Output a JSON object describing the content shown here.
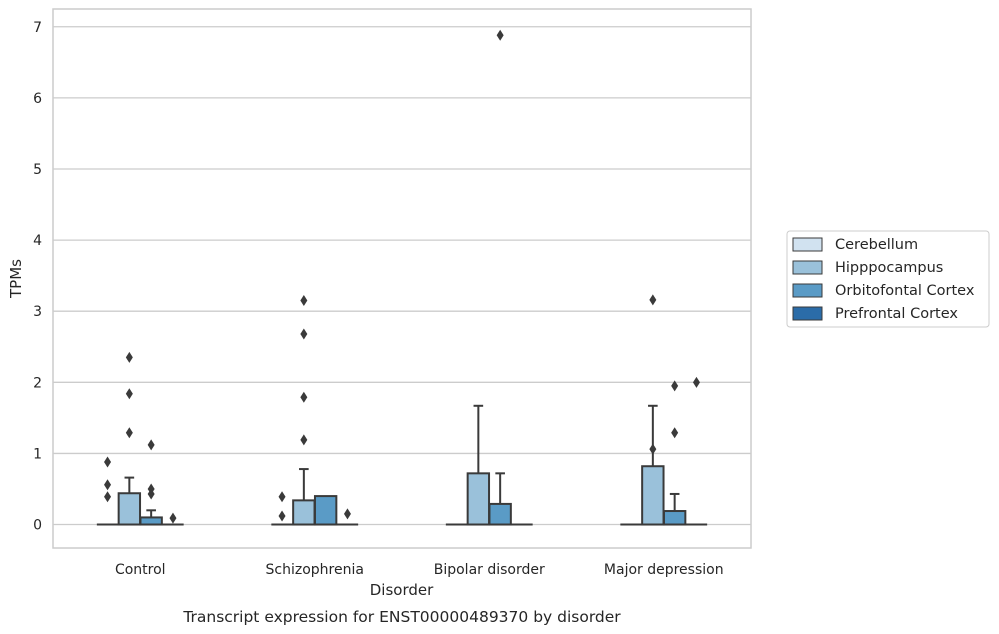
{
  "caption": "Transcript expression for ENST00000489370 by disorder",
  "chart_data": {
    "type": "box",
    "title": "",
    "xlabel": "Disorder",
    "ylabel": "TPMs",
    "ylim": [
      -0.33,
      7.25
    ],
    "yticks": [
      0,
      1,
      2,
      3,
      4,
      5,
      6,
      7
    ],
    "grid": "horizontal",
    "legend_position": "right",
    "categories": [
      "Control",
      "Schizophrenia",
      "Bipolar disorder",
      "Major depression"
    ],
    "series": [
      {
        "name": "Cerebellum",
        "color": "#d1e2f0",
        "boxes": [
          {
            "q1": 0,
            "median": 0,
            "q3": 0,
            "whisker_low": 0,
            "whisker_high": 0,
            "outliers": [
              0.39,
              0.56,
              0.88
            ]
          },
          {
            "q1": 0,
            "median": 0,
            "q3": 0,
            "whisker_low": 0,
            "whisker_high": 0,
            "outliers": [
              0.12,
              0.39
            ]
          },
          {
            "q1": 0,
            "median": 0,
            "q3": 0,
            "whisker_low": 0,
            "whisker_high": 0,
            "outliers": []
          },
          {
            "q1": 0,
            "median": 0,
            "q3": 0,
            "whisker_low": 0,
            "whisker_high": 0,
            "outliers": []
          }
        ]
      },
      {
        "name": "Hipppocampus",
        "color": "#9ac1da",
        "boxes": [
          {
            "q1": 0,
            "median": 0,
            "q3": 0.44,
            "whisker_low": 0,
            "whisker_high": 0.66,
            "outliers": [
              1.29,
              1.84,
              2.35
            ]
          },
          {
            "q1": 0,
            "median": 0,
            "q3": 0.34,
            "whisker_low": 0,
            "whisker_high": 0.78,
            "outliers": [
              1.19,
              1.79,
              2.68,
              3.15
            ]
          },
          {
            "q1": 0,
            "median": 0,
            "q3": 0.72,
            "whisker_low": 0,
            "whisker_high": 1.67,
            "outliers": []
          },
          {
            "q1": 0,
            "median": 0,
            "q3": 0.82,
            "whisker_low": 0,
            "whisker_high": 1.67,
            "outliers": [
              1.06,
              3.16
            ]
          }
        ]
      },
      {
        "name": "Orbitofontal Cortex",
        "color": "#5a9bc6",
        "boxes": [
          {
            "q1": 0,
            "median": 0,
            "q3": 0.1,
            "whisker_low": 0,
            "whisker_high": 0.2,
            "outliers": [
              0.43,
              0.5,
              1.12
            ]
          },
          {
            "q1": 0,
            "median": 0,
            "q3": 0.4,
            "whisker_low": 0,
            "whisker_high": 0.4,
            "outliers": []
          },
          {
            "q1": 0,
            "median": 0,
            "q3": 0.29,
            "whisker_low": 0,
            "whisker_high": 0.72,
            "outliers": [
              6.88
            ]
          },
          {
            "q1": 0,
            "median": 0,
            "q3": 0.19,
            "whisker_low": 0,
            "whisker_high": 0.43,
            "outliers": [
              1.29,
              1.95
            ]
          }
        ]
      },
      {
        "name": "Prefrontal Cortex",
        "color": "#2b6ca8",
        "boxes": [
          {
            "q1": 0,
            "median": 0,
            "q3": 0,
            "whisker_low": 0,
            "whisker_high": 0,
            "outliers": [
              0.09
            ]
          },
          {
            "q1": 0,
            "median": 0,
            "q3": 0,
            "whisker_low": 0,
            "whisker_high": 0,
            "outliers": [
              0.15
            ]
          },
          {
            "q1": 0,
            "median": 0,
            "q3": 0,
            "whisker_low": 0,
            "whisker_high": 0,
            "outliers": []
          },
          {
            "q1": 0,
            "median": 0,
            "q3": 0,
            "whisker_low": 0,
            "whisker_high": 0,
            "outliers": [
              2.0
            ]
          }
        ]
      }
    ]
  }
}
